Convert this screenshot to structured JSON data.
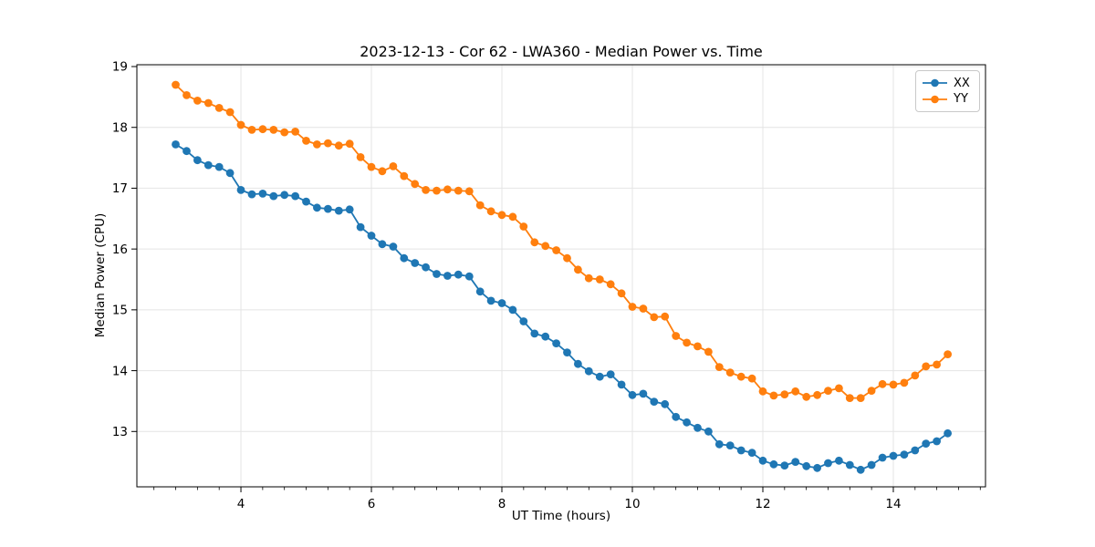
{
  "chart_data": {
    "type": "line",
    "title": "2023-12-13 - Cor 62 - LWA360 - Median Power vs. Time",
    "xlabel": "UT Time (hours)",
    "ylabel": "Median Power (CPU)",
    "xlim": [
      2.405,
      15.413
    ],
    "ylim": [
      12.09,
      19.03
    ],
    "grid": true,
    "grid_color": "#e4e4e4",
    "legend_position": "upper right",
    "x_major_ticks": [
      4,
      6,
      8,
      10,
      12,
      14
    ],
    "x_tick_labels": [
      "4",
      "6",
      "8",
      "10",
      "12",
      "14"
    ],
    "x_minor_step": 0.33333,
    "y_major_ticks": [
      13,
      14,
      15,
      16,
      17,
      18,
      19
    ],
    "y_tick_labels": [
      "13",
      "14",
      "15",
      "16",
      "17",
      "18",
      "19"
    ],
    "x": [
      3.0,
      3.1667,
      3.3333,
      3.5,
      3.6667,
      3.8333,
      4.0,
      4.1667,
      4.3333,
      4.5,
      4.6667,
      4.8333,
      5.0,
      5.1667,
      5.3333,
      5.5,
      5.6667,
      5.8333,
      6.0,
      6.1667,
      6.3333,
      6.5,
      6.6667,
      6.8333,
      7.0,
      7.1667,
      7.3333,
      7.5,
      7.6667,
      7.8333,
      8.0,
      8.1667,
      8.3333,
      8.5,
      8.6667,
      8.8333,
      9.0,
      9.1667,
      9.3333,
      9.5,
      9.6667,
      9.8333,
      10.0,
      10.1667,
      10.3333,
      10.5,
      10.6667,
      10.8333,
      11.0,
      11.1667,
      11.3333,
      11.5,
      11.6667,
      11.8333,
      12.0,
      12.1667,
      12.3333,
      12.5,
      12.6667,
      12.8333,
      13.0,
      13.1667,
      13.3333,
      13.5,
      13.6667,
      13.8333,
      14.0,
      14.1667,
      14.3333,
      14.5,
      14.6667,
      14.8333
    ],
    "series": [
      {
        "name": "XX",
        "color": "#1f77b4",
        "values": [
          17.72,
          17.61,
          17.46,
          17.38,
          17.35,
          17.25,
          16.97,
          16.9,
          16.91,
          16.87,
          16.89,
          16.87,
          16.78,
          16.68,
          16.66,
          16.63,
          16.65,
          16.36,
          16.22,
          16.08,
          16.04,
          15.85,
          15.77,
          15.7,
          15.59,
          15.56,
          15.58,
          15.55,
          15.3,
          15.15,
          15.11,
          15.0,
          14.81,
          14.61,
          14.56,
          14.45,
          14.3,
          14.11,
          13.99,
          13.9,
          13.94,
          13.77,
          13.6,
          13.62,
          13.49,
          13.45,
          13.24,
          13.15,
          13.06,
          13.0,
          12.79,
          12.77,
          12.69,
          12.65,
          12.52,
          12.46,
          12.44,
          12.5,
          12.43,
          12.4,
          12.48,
          12.52,
          12.45,
          12.37,
          12.45,
          12.57,
          12.6,
          12.62,
          12.69,
          12.8,
          12.84,
          12.97
        ]
      },
      {
        "name": "YY",
        "color": "#ff7f0e",
        "values": [
          18.7,
          18.53,
          18.44,
          18.4,
          18.32,
          18.25,
          18.04,
          17.96,
          17.97,
          17.96,
          17.92,
          17.93,
          17.78,
          17.72,
          17.74,
          17.7,
          17.73,
          17.51,
          17.35,
          17.28,
          17.36,
          17.2,
          17.07,
          16.97,
          16.96,
          16.98,
          16.96,
          16.95,
          16.72,
          16.62,
          16.56,
          16.53,
          16.37,
          16.11,
          16.05,
          15.98,
          15.85,
          15.66,
          15.52,
          15.5,
          15.42,
          15.27,
          15.05,
          15.02,
          14.88,
          14.89,
          14.57,
          14.46,
          14.4,
          14.31,
          14.06,
          13.97,
          13.9,
          13.87,
          13.66,
          13.59,
          13.61,
          13.66,
          13.57,
          13.6,
          13.67,
          13.71,
          13.55,
          13.55,
          13.67,
          13.78,
          13.77,
          13.8,
          13.92,
          14.07,
          14.1,
          14.27
        ]
      }
    ]
  }
}
